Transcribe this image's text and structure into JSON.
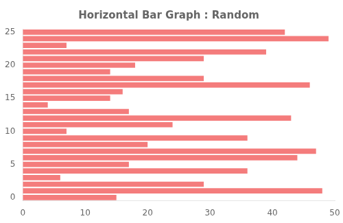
{
  "chart_data": {
    "type": "bar",
    "orientation": "horizontal",
    "title": "Horizontal Bar Graph : Random",
    "categories": [
      0,
      null,
      null,
      null,
      null,
      5,
      null,
      null,
      null,
      null,
      10,
      null,
      null,
      null,
      null,
      15,
      null,
      null,
      null,
      null,
      20,
      null,
      null,
      null,
      null,
      25
    ],
    "values": [
      15,
      48,
      29,
      6,
      36,
      17,
      44,
      47,
      20,
      36,
      7,
      24,
      43,
      17,
      4,
      14,
      16,
      46,
      29,
      14,
      18,
      29,
      39,
      7,
      49,
      42
    ],
    "color": "#f47c7c",
    "xlim": [
      0,
      50
    ],
    "xticks": [
      0,
      10,
      20,
      30,
      40,
      50
    ],
    "grid": false
  }
}
